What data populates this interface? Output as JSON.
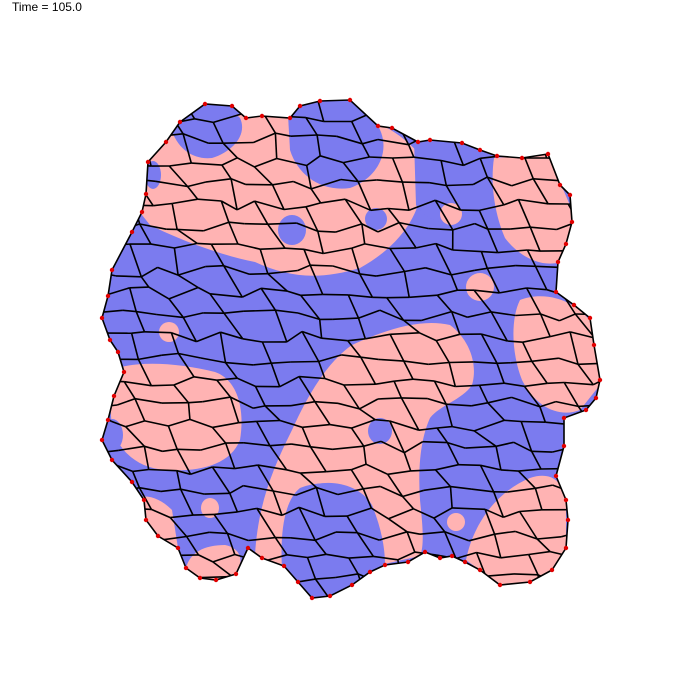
{
  "time_text": "Time = 105.0",
  "colors": {
    "type_a_fill": "#7b7bef",
    "type_b_fill": "#ffb3b3",
    "edge": "#000000",
    "boundary_vertex": "#e00000",
    "background": "#ffffff"
  },
  "blobs": [
    {
      "type": "a",
      "role": "matrix"
    },
    {
      "type": "b",
      "role": "patch-top-left"
    },
    {
      "type": "a",
      "role": "patch-top-left-cap"
    },
    {
      "type": "a",
      "role": "patch-top-center-cap"
    },
    {
      "type": "a",
      "role": "patch-top-right-column"
    },
    {
      "type": "b",
      "role": "patch-right-top"
    },
    {
      "type": "b",
      "role": "patch-right-middle"
    },
    {
      "type": "b",
      "role": "patch-left-middle"
    },
    {
      "type": "b",
      "role": "patch-center-stripe"
    },
    {
      "type": "a",
      "role": "patch-bottom-center"
    },
    {
      "type": "b",
      "role": "patch-bottom-right"
    },
    {
      "type": "b",
      "role": "patch-bottom-left"
    },
    {
      "type": "b",
      "role": "patch-bottom-center-cap"
    },
    {
      "type": "a",
      "role": "islet"
    },
    {
      "type": "a",
      "role": "islet"
    },
    {
      "type": "b",
      "role": "islet"
    },
    {
      "type": "b",
      "role": "islet"
    },
    {
      "type": "b",
      "role": "islet"
    },
    {
      "type": "a",
      "role": "islet"
    },
    {
      "type": "b",
      "role": "islet"
    },
    {
      "type": "b",
      "role": "islet"
    },
    {
      "type": "a",
      "role": "islet"
    },
    {
      "type": "a",
      "role": "islet"
    }
  ]
}
